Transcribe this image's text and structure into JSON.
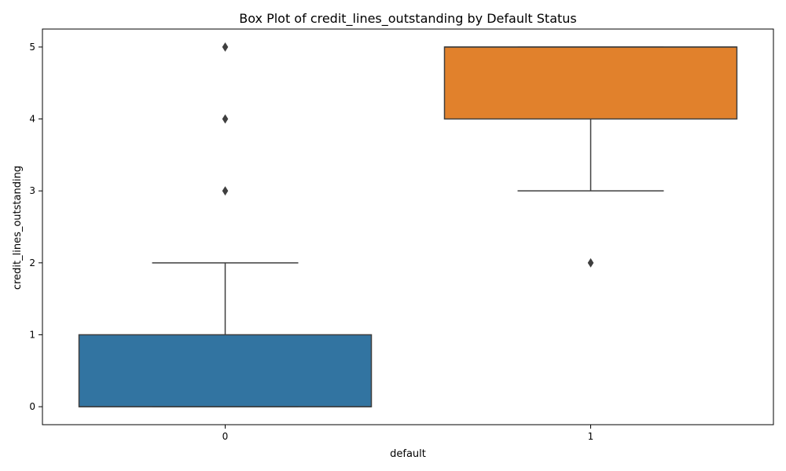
{
  "chart_data": {
    "type": "box",
    "title": "Box Plot of credit_lines_outstanding by Default Status",
    "xlabel": "default",
    "ylabel": "credit_lines_outstanding",
    "categories": [
      "0",
      "1"
    ],
    "ylim": [
      -0.25,
      5.25
    ],
    "yticks": [
      "0",
      "1",
      "2",
      "3",
      "4",
      "5"
    ],
    "grid": false,
    "boxes": [
      {
        "category": "0",
        "q1": 0,
        "median": 0,
        "q3": 1,
        "whisker_low": 0,
        "whisker_high": 2,
        "outliers": [
          3,
          4,
          5
        ],
        "color": "#3274a1"
      },
      {
        "category": "1",
        "q1": 4,
        "median": 5,
        "q3": 5,
        "whisker_low": 3,
        "whisker_high": 5,
        "outliers": [
          2
        ],
        "color": "#e1812c"
      }
    ],
    "line_color": "#3f3f3f"
  }
}
